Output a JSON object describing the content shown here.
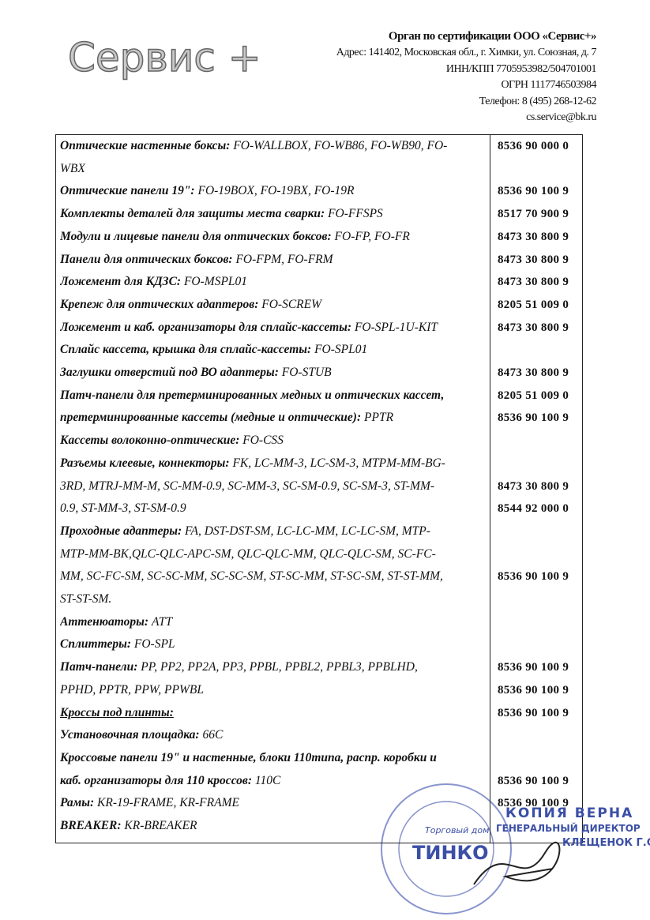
{
  "header": {
    "logo": "Сервис +",
    "org": "Орган по сертификации ООО «Сервис+»",
    "lines": [
      "Адрес: 141402, Московская обл., г. Химки, ул. Союзная, д. 7",
      "ИНН/КПП 7705953982/504701001",
      "ОГРН 1117746503984",
      "Телефон: 8 (495) 268-12-62",
      "cs.service@bk.ru"
    ]
  },
  "table": {
    "lines": [
      {
        "bold": "Оптические настенные боксы:",
        "text": " FO-WALLBOX, FO-WB86, FO-WB90, FO-",
        "code": "8536 90 000 0"
      },
      {
        "text": "WBX"
      },
      {
        "bold": "Оптические панели 19\":",
        "text": " FO-19BOX, FO-19BX, FO-19R",
        "code": "8536 90 100 9"
      },
      {
        "bold": "Комплекты деталей для защиты места сварки:",
        "text": " FO-FFSPS",
        "code": "8517 70 900 9"
      },
      {
        "bold": "Модули и лицевые панели для оптических боксов:",
        "text": " FO-FP, FO-FR",
        "code": "8473 30 800 9"
      },
      {
        "bold": "Панели для оптических боксов:",
        "text": " FO-FPM, FO-FRM",
        "code": "8473 30 800 9"
      },
      {
        "bold": "Ложемент для КДЗС:",
        "text": " FO-MSPL01",
        "code": "8473 30 800 9"
      },
      {
        "bold": "Крепеж для оптических адаптеров:",
        "text": " FO-SCREW",
        "code": "8205 51 009 0"
      },
      {
        "bold": "Ложемент и каб. организаторы для сплайс-кассеты:",
        "text": " FO-SPL-1U-KIT",
        "code": "8473 30 800 9"
      },
      {
        "bold": "Сплайс кассета, крышка для сплайс-кассеты:",
        "text": " FO-SPL01"
      },
      {
        "bold": "Заглушки отверстий под ВО адаптеры:",
        "text": " FO-STUB",
        "code": "8473 30 800 9"
      },
      {
        "bold": "Патч-панели для претерминированных медных и оптических кассет,",
        "code": "8205 51 009 0"
      },
      {
        "bold": "претерминированные кассеты (медные и оптические):",
        "text": " PPTR",
        "code": "8536 90 100 9"
      },
      {
        "bold": "Кассеты волоконно-оптические:",
        "text": " FO-CSS"
      },
      {
        "bold": "Разъемы клеевые, коннекторы:",
        "text": " FK, LC-MM-3, LC-SM-3, MTPM-MM-BG-"
      },
      {
        "text": "3RD, MTRJ-MM-M, SC-MM-0.9, SC-MM-3, SC-SM-0.9, SC-SM-3, ST-MM-",
        "code": "8473 30 800 9"
      },
      {
        "text": "0.9, ST-MM-3, ST-SM-0.9",
        "code": "8544 92 000 0"
      },
      {
        "bold": "Проходные адаптеры:",
        "text": " FA, DST-DST-SM, LC-LC-MM, LC-LC-SM, MTP-"
      },
      {
        "text": "MTP-MM-BK,QLC-QLC-APC-SM, QLC-QLC-MM, QLC-QLC-SM, SC-FC-"
      },
      {
        "text": "MM, SC-FC-SM, SC-SC-MM, SC-SC-SM, ST-SC-MM, ST-SC-SM, ST-ST-MM,",
        "code": "8536 90 100 9"
      },
      {
        "text": "ST-ST-SM."
      },
      {
        "bold": "Аттенюаторы:",
        "text": " ATT"
      },
      {
        "bold": "Сплиттеры:",
        "text": " FO-SPL"
      },
      {
        "bold": "Патч-панели:",
        "text": " PP, PP2, PP2A, PP3, PPBL, PPBL2, PPBL3, PPBLHD,",
        "code": "8536 90 100 9"
      },
      {
        "text": "PPHD, PPTR, PPW, PPWBL",
        "code": "8536 90 100 9"
      },
      {
        "bold": "Кроссы под плинты:",
        "underline": true,
        "code": "8536 90 100 9"
      },
      {
        "bold": "Установочная площадка:",
        "text": " 66C"
      },
      {
        "bold": "Кроссовые панели 19\" и настенные, блоки 110типа, распр. коробки и"
      },
      {
        "bold": "каб. организаторы для 110 кроссов:",
        "text": " 110C",
        "code": "8536 90 100 9"
      },
      {
        "bold": "Рамы:",
        "text": " KR-19-FRAME, KR-FRAME",
        "code": "8536 90 100 9"
      },
      {
        "bold": "BREAKER:",
        "text": " KR-BREAKER"
      }
    ]
  },
  "stamp": {
    "copy": "КОПИЯ ВЕРНА",
    "title": "ГЕНЕРАЛЬНЫЙ ДИРЕКТОР",
    "name": "КЛЕЩЕНОК Г.С.",
    "seal_top": "Торговый дом",
    "seal_brand": "ТИНКО"
  }
}
